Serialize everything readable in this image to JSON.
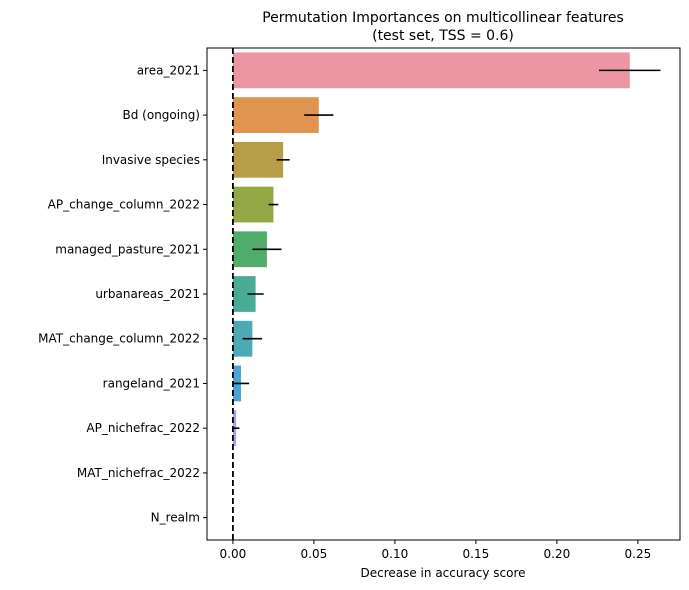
{
  "chart_data": {
    "type": "bar",
    "orientation": "horizontal",
    "title": "Permutation Importances on multicollinear features",
    "subtitle": "(test set, TSS = 0.6)",
    "xlabel": "Decrease in accuracy score",
    "ylabel": "",
    "xlim": [
      -0.016,
      0.276
    ],
    "xticks": [
      0.0,
      0.05,
      0.1,
      0.15,
      0.2,
      0.25
    ],
    "xtick_labels": [
      "0.00",
      "0.05",
      "0.10",
      "0.15",
      "0.20",
      "0.25"
    ],
    "reference_line": {
      "x": 0,
      "style": "dashed",
      "color": "#000000"
    },
    "grid": false,
    "categories": [
      "area_2021",
      "Bd (ongoing)",
      "Invasive species",
      "AP_change_column_2022",
      "managed_pasture_2021",
      "urbanareas_2021",
      "MAT_change_column_2022",
      "rangeland_2021",
      "AP_nichefrac_2022",
      "MAT_nichefrac_2022",
      "N_realm"
    ],
    "values": [
      0.245,
      0.053,
      0.031,
      0.025,
      0.021,
      0.014,
      0.012,
      0.005,
      0.002,
      0.0,
      0.0
    ],
    "errors": [
      0.019,
      0.009,
      0.004,
      0.003,
      0.009,
      0.005,
      0.006,
      0.005,
      0.002,
      0.0,
      0.0
    ],
    "colors": [
      "#ec96a3",
      "#e0944f",
      "#b89d48",
      "#93a745",
      "#50ad6c",
      "#4aab96",
      "#4caab6",
      "#4ea5d4",
      "#a9a2ec",
      "#e08fe8",
      "#ec91c3"
    ]
  }
}
